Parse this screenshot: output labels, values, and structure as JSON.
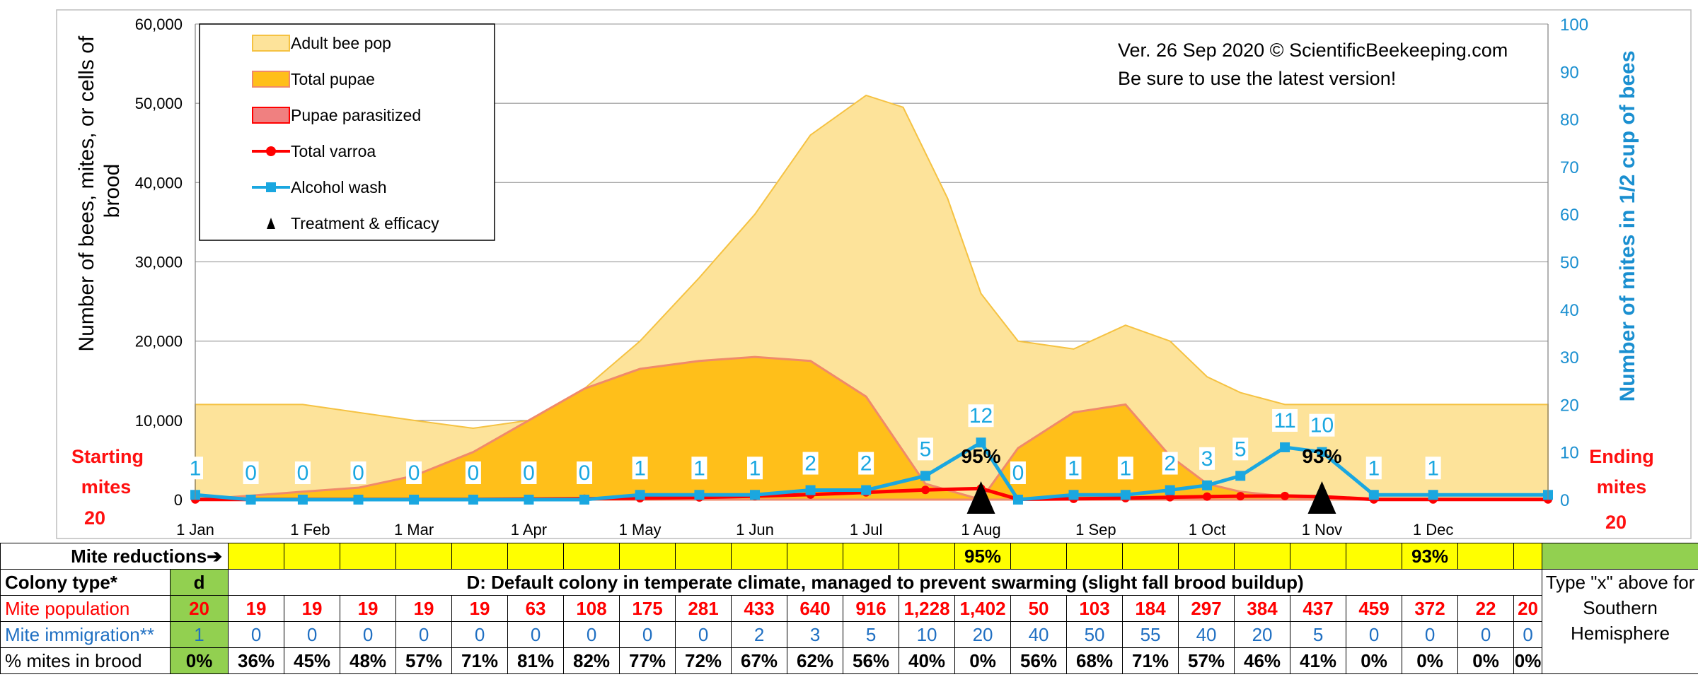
{
  "chart_data": {
    "type": "area",
    "title": "Ver. 26 Sep 2020 © ScientificBeekeeping.com",
    "subtitle": "Be sure to use the latest version!",
    "ylabel_left": "Number of bees, mites, or cells of brood",
    "ylabel_right": "Number of mites in 1/2 cup of bees",
    "ylim_left": [
      0,
      60000
    ],
    "ylim_right": [
      0,
      100
    ],
    "left_ticks": [
      "0",
      "10,000",
      "20,000",
      "30,000",
      "40,000",
      "50,000",
      "60,000"
    ],
    "right_ticks": [
      "0",
      "10",
      "20",
      "30",
      "40",
      "50",
      "60",
      "70",
      "80",
      "90",
      "100"
    ],
    "x_ticks": [
      "1 Jan",
      "1 Feb",
      "1 Mar",
      "1 Apr",
      "1 May",
      "1 Jun",
      "1 Jul",
      "1 Aug",
      "1 Sep",
      "1 Oct",
      "1 Nov",
      "1 Dec"
    ],
    "legend": [
      {
        "label": "Adult bee pop",
        "kind": "area",
        "color": "#fde39a"
      },
      {
        "label": "Total pupae",
        "kind": "area",
        "color": "#ffbf1a"
      },
      {
        "label": "Pupae parasitized",
        "kind": "area",
        "color": "#f08080"
      },
      {
        "label": "Total varroa",
        "kind": "line",
        "color": "#ff0000"
      },
      {
        "label": "Alcohol wash",
        "kind": "line",
        "color": "#1aa7e0"
      },
      {
        "label": "Treatment & efficacy",
        "kind": "marker",
        "color": "#000000"
      }
    ],
    "x_days": [
      0,
      31,
      59,
      90,
      120,
      151,
      181,
      212,
      243,
      273,
      304,
      334,
      365
    ],
    "adult_bee_pop": {
      "days": [
        0,
        29,
        59,
        75,
        90,
        105,
        120,
        136,
        151,
        166,
        181,
        191,
        203,
        212,
        222,
        237,
        251,
        263,
        273,
        282,
        294,
        304,
        318,
        334,
        365
      ],
      "values": [
        12000,
        12000,
        10000,
        9000,
        10000,
        14000,
        20000,
        28000,
        36000,
        46000,
        51000,
        49500,
        38000,
        26000,
        20000,
        19000,
        22000,
        20000,
        15500,
        13500,
        12000,
        12000,
        12000,
        12000,
        12000
      ]
    },
    "total_pupae": {
      "days": [
        0,
        15,
        29,
        44,
        59,
        75,
        90,
        105,
        120,
        136,
        151,
        166,
        181,
        197,
        212,
        222,
        237,
        251,
        263,
        273,
        282,
        294,
        304,
        318,
        334,
        365
      ],
      "values": [
        0,
        500,
        1000,
        1500,
        3000,
        6000,
        10000,
        14000,
        16500,
        17500,
        18000,
        17500,
        13000,
        2000,
        0,
        6500,
        11000,
        12000,
        5500,
        2000,
        1000,
        400,
        100,
        0,
        0,
        0
      ]
    },
    "total_varroa": {
      "days": [
        0,
        15,
        29,
        44,
        59,
        75,
        90,
        105,
        120,
        136,
        151,
        166,
        181,
        197,
        212,
        222,
        237,
        251,
        263,
        273,
        282,
        294,
        304,
        318,
        334,
        365
      ],
      "values": [
        20,
        19,
        19,
        19,
        19,
        19,
        63,
        108,
        175,
        281,
        433,
        640,
        916,
        1228,
        1402,
        50,
        103,
        184,
        297,
        384,
        437,
        459,
        372,
        22,
        20,
        20
      ]
    },
    "alcohol_wash": {
      "days": [
        0,
        15,
        29,
        44,
        59,
        75,
        90,
        105,
        120,
        136,
        151,
        166,
        181,
        197,
        212,
        222,
        237,
        251,
        263,
        273,
        282,
        294,
        304,
        318,
        334,
        365
      ],
      "values": [
        1,
        0,
        0,
        0,
        0,
        0,
        0,
        0,
        1,
        1,
        1,
        2,
        2,
        5,
        12,
        0,
        1,
        1,
        2,
        3,
        5,
        11,
        10,
        1,
        1,
        1
      ]
    },
    "wash_labels": [
      {
        "day": 0,
        "text": "1"
      },
      {
        "day": 15,
        "text": "0"
      },
      {
        "day": 29,
        "text": "0"
      },
      {
        "day": 44,
        "text": "0"
      },
      {
        "day": 59,
        "text": "0"
      },
      {
        "day": 75,
        "text": "0"
      },
      {
        "day": 90,
        "text": "0"
      },
      {
        "day": 105,
        "text": "0"
      },
      {
        "day": 120,
        "text": "1"
      },
      {
        "day": 136,
        "text": "1"
      },
      {
        "day": 151,
        "text": "1"
      },
      {
        "day": 166,
        "text": "2"
      },
      {
        "day": 181,
        "text": "2"
      },
      {
        "day": 197,
        "text": "5"
      },
      {
        "day": 212,
        "text": "12"
      },
      {
        "day": 222,
        "text": "0"
      },
      {
        "day": 237,
        "text": "1"
      },
      {
        "day": 251,
        "text": "1"
      },
      {
        "day": 263,
        "text": "2"
      },
      {
        "day": 273,
        "text": "3"
      },
      {
        "day": 282,
        "text": "5"
      },
      {
        "day": 294,
        "text": "11"
      },
      {
        "day": 304,
        "text": "10"
      },
      {
        "day": 318,
        "text": "1"
      },
      {
        "day": 334,
        "text": "1"
      }
    ],
    "treatments": [
      {
        "day": 212,
        "efficacy": "95%"
      },
      {
        "day": 304,
        "efficacy": "93%"
      }
    ]
  },
  "annotations": {
    "starting_mites_line1": "Starting",
    "starting_mites_line2": "mites",
    "starting_mites_value": "20",
    "ending_mites_line1": "Ending",
    "ending_mites_line2": "mites",
    "ending_mites_value": "20"
  },
  "table": {
    "mite_reductions_label": "Mite reductions➔",
    "mite_reductions": [
      "",
      "",
      "",
      "",
      "",
      "",
      "",
      "",
      "",
      "",
      "",
      "",
      "",
      "95%",
      "",
      "",
      "",
      "",
      "",
      "",
      "",
      "93%",
      "",
      ""
    ],
    "colony_type_label": "Colony type*",
    "colony_type_value": "d",
    "colony_description": "D: Default colony in temperate climate, managed to prevent swarming (slight fall brood buildup)",
    "mite_population_label": "Mite population",
    "mite_population_start": "20",
    "mite_population": [
      "19",
      "19",
      "19",
      "19",
      "19",
      "63",
      "108",
      "175",
      "281",
      "433",
      "640",
      "916",
      "1,228",
      "1,402",
      "50",
      "103",
      "184",
      "297",
      "384",
      "437",
      "459",
      "372",
      "22",
      "20"
    ],
    "mite_immigration_label": "Mite immigration**",
    "mite_immigration_start": "1",
    "mite_immigration": [
      "0",
      "0",
      "0",
      "0",
      "0",
      "0",
      "0",
      "0",
      "0",
      "2",
      "3",
      "5",
      "10",
      "20",
      "40",
      "50",
      "55",
      "40",
      "20",
      "5",
      "0",
      "0",
      "0",
      "0"
    ],
    "pct_brood_label": "% mites in brood",
    "pct_brood_start": "0%",
    "pct_brood": [
      "36%",
      "45%",
      "48%",
      "57%",
      "71%",
      "81%",
      "82%",
      "77%",
      "72%",
      "67%",
      "62%",
      "56%",
      "40%",
      "0%",
      "56%",
      "68%",
      "71%",
      "57%",
      "46%",
      "41%",
      "0%",
      "0%",
      "0%",
      "0%"
    ],
    "southern_note": "Type \"x\" above for Southern Hemisphere"
  }
}
